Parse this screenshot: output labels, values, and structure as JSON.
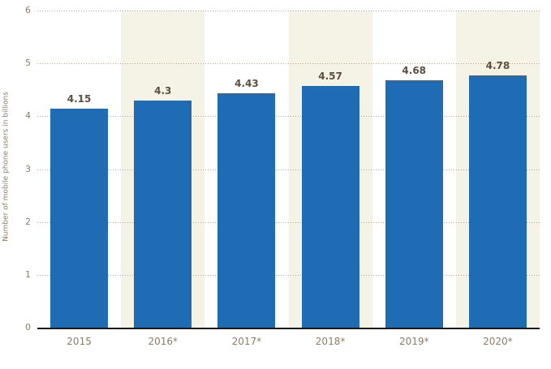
{
  "chart_data": {
    "type": "bar",
    "categories": [
      "2015",
      "2016*",
      "2017*",
      "2018*",
      "2019*",
      "2020*"
    ],
    "values": [
      4.15,
      4.3,
      4.43,
      4.57,
      4.68,
      4.78
    ],
    "title": "",
    "xlabel": "",
    "ylabel": "Number of mobile phone users in billions",
    "ylim": [
      0,
      6
    ],
    "yticks": [
      0,
      1,
      2,
      3,
      4,
      5,
      6
    ],
    "grid": "horizontal-dotted",
    "legend": "none",
    "banded_categories": [
      "2016*",
      "2018*",
      "2020*"
    ],
    "colors": {
      "bar": "#1f6cb4",
      "band": "#f5f3e5",
      "grid_dots": "#b3a591",
      "tick_label": "#8c7c6a",
      "value_label": "#5d5040",
      "axis_line": "#1a1a1a",
      "background": "#ffffff"
    }
  }
}
